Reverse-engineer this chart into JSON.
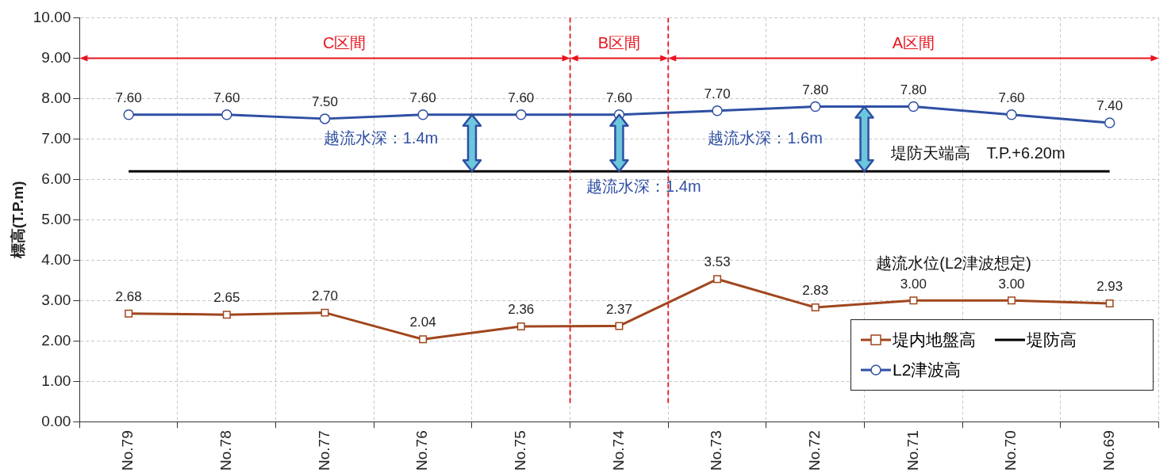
{
  "chart_data": {
    "type": "line",
    "ylabel": "標高(T.P.m)",
    "categories": [
      "No.79",
      "No.78",
      "No.77",
      "No.76",
      "No.75",
      "No.74",
      "No.73",
      "No.72",
      "No.71",
      "No.70",
      "No.69"
    ],
    "series": [
      {
        "name": "堤内地盤高",
        "color": "#a0461e",
        "marker": "square",
        "values": [
          2.68,
          2.65,
          2.7,
          2.04,
          2.36,
          2.37,
          3.53,
          2.83,
          3.0,
          3.0,
          2.93
        ],
        "value_labels": [
          "2.68",
          "2.65",
          "2.70",
          "2.04",
          "2.36",
          "2.37",
          "3.53",
          "2.83",
          "3.00",
          "3.00",
          "2.93"
        ]
      },
      {
        "name": "堤防高",
        "color": "#000000",
        "marker": "none",
        "values": [
          6.2,
          6.2,
          6.2,
          6.2,
          6.2,
          6.2,
          6.2,
          6.2,
          6.2,
          6.2,
          6.2
        ]
      },
      {
        "name": "L2津波高",
        "color": "#2e4fa3",
        "marker": "circle",
        "values": [
          7.6,
          7.6,
          7.5,
          7.6,
          7.6,
          7.6,
          7.7,
          7.8,
          7.8,
          7.6,
          7.4
        ],
        "value_labels": [
          "7.60",
          "7.60",
          "7.50",
          "7.60",
          "7.60",
          "7.60",
          "7.70",
          "7.80",
          "7.80",
          "7.60",
          "7.40"
        ]
      }
    ],
    "ylim": [
      0,
      10
    ],
    "yticks": [
      {
        "value": 0,
        "label": "0.00"
      },
      {
        "value": 1,
        "label": "1.00"
      },
      {
        "value": 2,
        "label": "2.00"
      },
      {
        "value": 3,
        "label": "3.00"
      },
      {
        "value": 4,
        "label": "4.00"
      },
      {
        "value": 5,
        "label": "5.00"
      },
      {
        "value": 6,
        "label": "6.00"
      },
      {
        "value": 7,
        "label": "7.00"
      },
      {
        "value": 8,
        "label": "8.00"
      },
      {
        "value": 9,
        "label": "9.00"
      },
      {
        "value": 10,
        "label": "10.00"
      }
    ],
    "annotations": [
      "C区間",
      "B区間",
      "A区間",
      "越流水深：1.4m",
      "越流水深：1.4m",
      "越流水深：1.6m",
      "堤防天端高　T.P.+6.20m",
      "越流水位(L2津波想定)"
    ],
    "grid": true,
    "legend": "bottom right",
    "line_style": "solid"
  }
}
